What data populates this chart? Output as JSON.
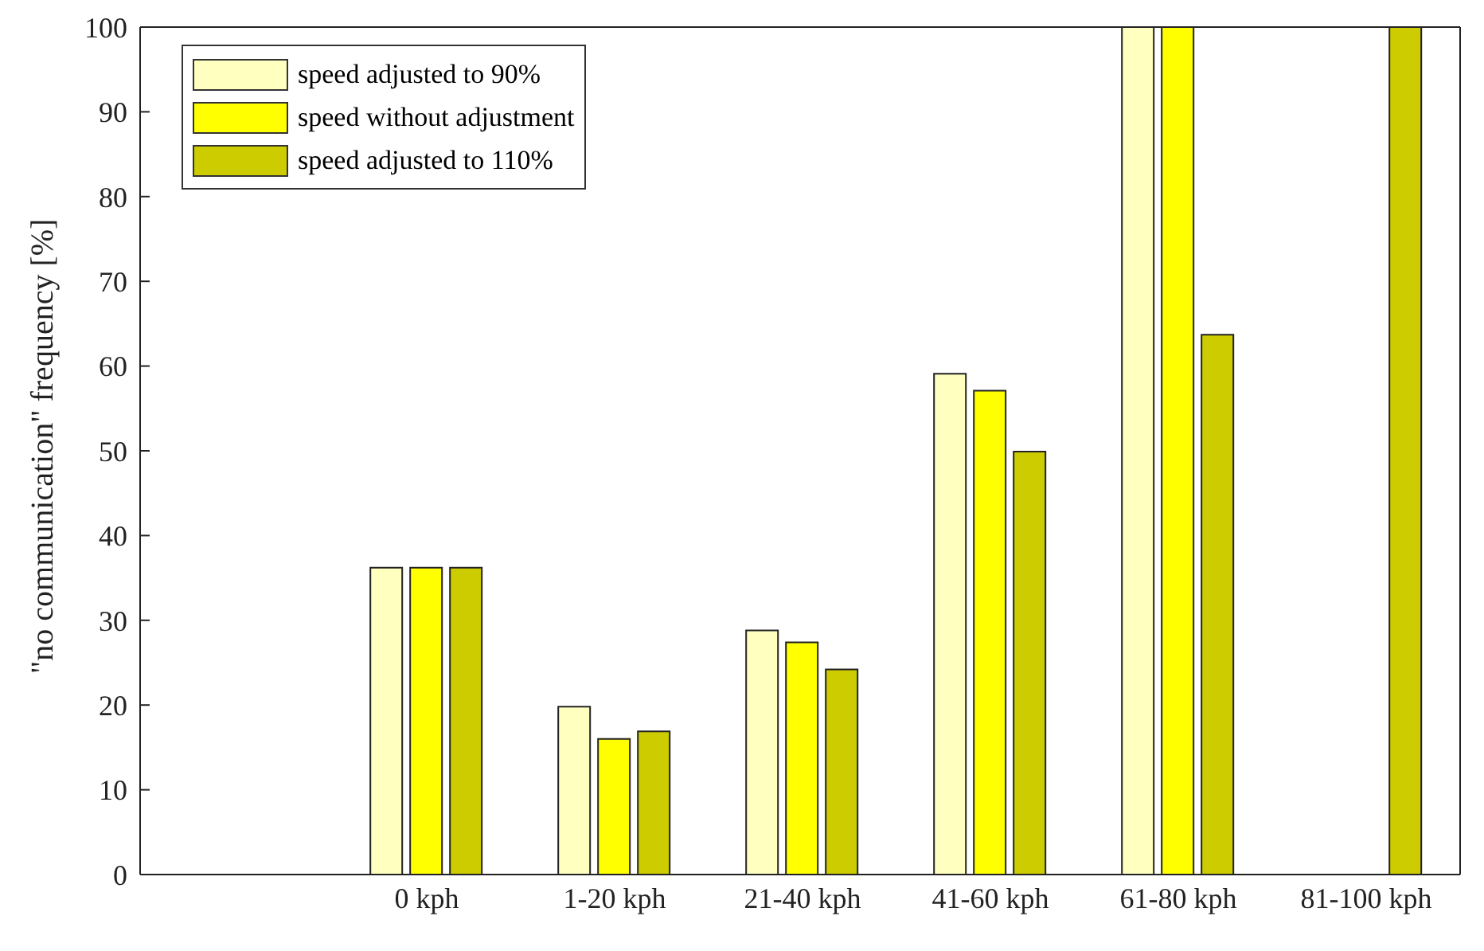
{
  "chart_data": {
    "type": "bar",
    "ylabel": "\"no communication\"  frequency [%]",
    "categories": [
      "0 kph",
      "1-20 kph",
      "21-40 kph",
      "41-60 kph",
      "61-80 kph",
      "81-100 kph"
    ],
    "series": [
      {
        "name": "speed adjusted to 90%",
        "color": "#ffffc0",
        "values": [
          36.2,
          19.8,
          28.8,
          59.1,
          100,
          0
        ]
      },
      {
        "name": "speed without adjustment",
        "color": "#ffff00",
        "values": [
          36.2,
          16,
          27.4,
          57.1,
          100,
          0
        ]
      },
      {
        "name": "speed adjusted to 110%",
        "color": "#cccc00",
        "values": [
          36.2,
          16.9,
          24.2,
          49.9,
          63.7,
          100
        ]
      }
    ],
    "ylim": [
      0,
      100
    ],
    "yticks": [
      0,
      10,
      20,
      30,
      40,
      50,
      60,
      70,
      80,
      90,
      100
    ],
    "grid": false,
    "legend": "top left"
  }
}
